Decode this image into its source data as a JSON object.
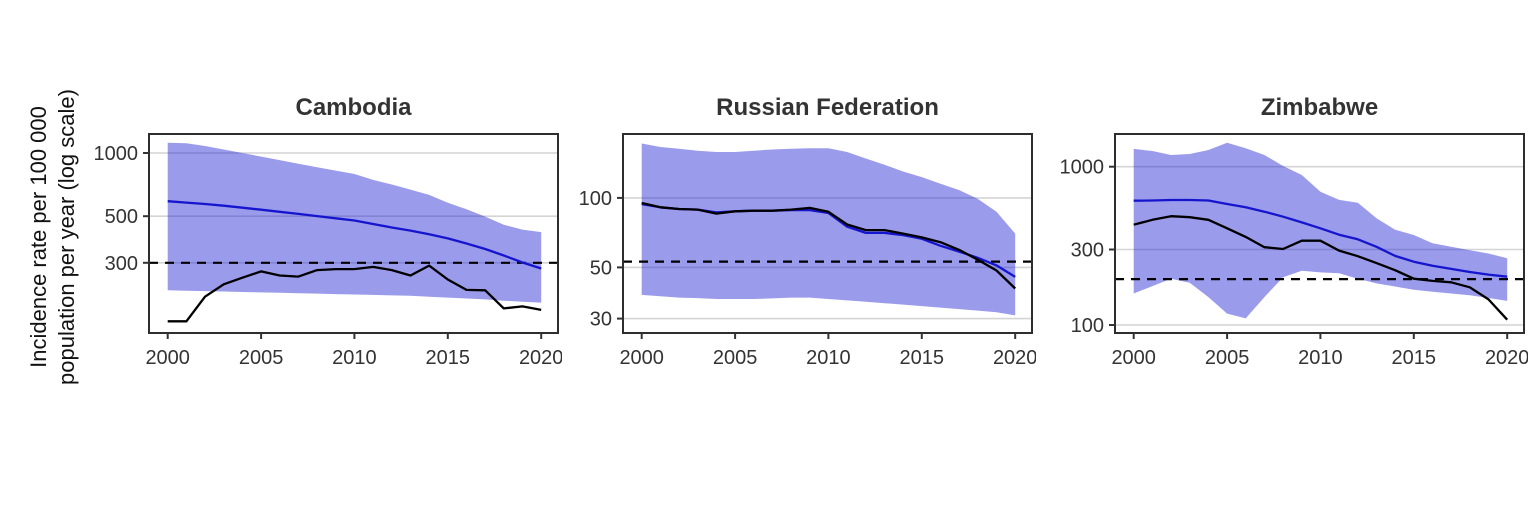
{
  "figure": {
    "ylabel_line1": "Incidence rate per 100 000",
    "ylabel_line2": "population per year (log scale)"
  },
  "colors": {
    "band_fill": "#2222D2",
    "band_opacity": 0.45,
    "estimate_line": "#1515CE",
    "notified_line": "#000000",
    "target_line": "#000000",
    "gridline": "#d4d4d4",
    "panel_border": "#2e2e2e",
    "tick_mark": "#333333",
    "tick_text": "#333333"
  },
  "chart_data": [
    {
      "type": "line",
      "title": "Cambodia",
      "xlabel": "",
      "ylabel": "Incidence rate per 100 000 population per year (log scale)",
      "x": [
        2000,
        2001,
        2002,
        2003,
        2004,
        2005,
        2006,
        2007,
        2008,
        2009,
        2010,
        2011,
        2012,
        2013,
        2014,
        2015,
        2016,
        2017,
        2018,
        2019,
        2020
      ],
      "series": [
        {
          "name": "estimated-incidence-blue",
          "values": [
            590,
            581,
            572,
            561,
            549,
            537,
            525,
            513,
            501,
            489,
            477,
            459,
            442,
            427,
            410,
            392,
            371,
            349,
            325,
            301,
            282
          ]
        },
        {
          "name": "notifications-black",
          "values": [
            158,
            158,
            207,
            237,
            255,
            273,
            261,
            258,
            277,
            280,
            280,
            287,
            277,
            261,
            291,
            250,
            223,
            222,
            182,
            186,
            179
          ]
        }
      ],
      "band": {
        "name": "uncertainty-interval",
        "hi": [
          1120,
          1112,
          1080,
          1040,
          1000,
          962,
          925,
          890,
          855,
          825,
          795,
          745,
          708,
          670,
          632,
          580,
          540,
          498,
          455,
          432,
          420
        ],
        "lo": [
          222,
          221,
          220,
          219,
          218,
          217,
          216,
          215,
          214,
          213,
          212,
          211,
          210,
          209,
          207,
          205,
          203,
          201,
          198,
          196,
          194
        ]
      },
      "target_dashed_y": 300,
      "ylim": [
        139,
        1232
      ],
      "yticks": [
        {
          "v": 1000,
          "label": "1000"
        },
        {
          "v": 500,
          "label": "500"
        },
        {
          "v": 300,
          "label": "300"
        }
      ],
      "xlim": [
        1999,
        2020.9
      ],
      "xticks": [
        {
          "v": 2000,
          "label": "2000"
        },
        {
          "v": 2005,
          "label": "2005"
        },
        {
          "v": 2010,
          "label": "2010"
        },
        {
          "v": 2015,
          "label": "2015"
        },
        {
          "v": 2020,
          "label": "2020"
        }
      ],
      "grid": true,
      "legend": "none",
      "scale": "log10"
    },
    {
      "type": "line",
      "title": "Russian Federation",
      "xlabel": "",
      "ylabel": "Incidence rate per 100 000 population per year (log scale)",
      "x": [
        2000,
        2001,
        2002,
        2003,
        2004,
        2005,
        2006,
        2007,
        2008,
        2009,
        2010,
        2011,
        2012,
        2013,
        2014,
        2015,
        2016,
        2017,
        2018,
        2019,
        2020
      ],
      "series": [
        {
          "name": "estimated-incidence-blue",
          "values": [
            94,
            91,
            89.5,
            89,
            86.5,
            87.5,
            88,
            88,
            88.5,
            88.5,
            86,
            75,
            70.5,
            70.5,
            69,
            66.5,
            62,
            58.5,
            55,
            51,
            45.5
          ]
        },
        {
          "name": "notifications-black",
          "values": [
            95,
            91,
            89.5,
            89,
            85.5,
            87.5,
            88,
            88,
            89,
            90.5,
            87,
            76.7,
            72.5,
            72.5,
            70,
            67.4,
            64.3,
            59.5,
            54,
            48.5,
            40.5
          ]
        }
      ],
      "band": {
        "name": "uncertainty-interval",
        "hi": [
          172,
          166,
          163,
          160,
          158,
          158,
          160,
          162,
          163,
          164,
          164,
          158,
          148,
          139,
          130,
          123,
          115,
          108,
          99,
          87,
          70
        ],
        "lo": [
          38,
          37.5,
          37,
          36.8,
          36.5,
          36.5,
          36.5,
          36.7,
          37,
          37,
          36.5,
          36,
          35.5,
          35,
          34.5,
          34,
          33.5,
          33,
          32.5,
          32,
          31
        ]
      },
      "target_dashed_y": 53,
      "ylim": [
        26,
        189
      ],
      "yticks": [
        {
          "v": 100,
          "label": "100"
        },
        {
          "v": 50,
          "label": "50"
        },
        {
          "v": 30,
          "label": "30"
        }
      ],
      "xlim": [
        1999,
        2020.9
      ],
      "xticks": [
        {
          "v": 2000,
          "label": "2000"
        },
        {
          "v": 2005,
          "label": "2005"
        },
        {
          "v": 2010,
          "label": "2010"
        },
        {
          "v": 2015,
          "label": "2015"
        },
        {
          "v": 2020,
          "label": "2020"
        }
      ],
      "grid": true,
      "legend": "none",
      "scale": "log10"
    },
    {
      "type": "line",
      "title": "Zimbabwe",
      "xlabel": "",
      "ylabel": "Incidence rate per 100 000 population per year (log scale)",
      "x": [
        2000,
        2001,
        2002,
        2003,
        2004,
        2005,
        2006,
        2007,
        2008,
        2009,
        2010,
        2011,
        2012,
        2013,
        2014,
        2015,
        2016,
        2017,
        2018,
        2019,
        2020
      ],
      "series": [
        {
          "name": "estimated-incidence-blue",
          "values": [
            610,
            612,
            616,
            616,
            612,
            581,
            554,
            520,
            483,
            445,
            408,
            372,
            348,
            312,
            273,
            251,
            237,
            226,
            216,
            208,
            202
          ]
        },
        {
          "name": "notifications-black",
          "values": [
            430,
            462,
            487,
            480,
            462,
            408,
            360,
            310,
            302,
            341,
            341,
            295,
            272,
            246,
            222,
            196,
            190,
            186,
            173,
            145,
            108
          ]
        }
      ],
      "band": {
        "name": "uncertainty-interval",
        "hi": [
          1295,
          1257,
          1186,
          1203,
          1275,
          1418,
          1306,
          1186,
          1010,
          886,
          695,
          617,
          592,
          472,
          400,
          370,
          328,
          312,
          297,
          283,
          264
        ],
        "lo": [
          158,
          176,
          196,
          185,
          150,
          118,
          110,
          150,
          200,
          220,
          215,
          212,
          196,
          183,
          175,
          167,
          162,
          158,
          154,
          148,
          142
        ]
      },
      "target_dashed_y": 195,
      "ylim": [
        89,
        1609
      ],
      "yticks": [
        {
          "v": 1000,
          "label": "1000"
        },
        {
          "v": 300,
          "label": "300"
        },
        {
          "v": 100,
          "label": "100"
        }
      ],
      "xlim": [
        1999,
        2020.9
      ],
      "xticks": [
        {
          "v": 2000,
          "label": "2000"
        },
        {
          "v": 2005,
          "label": "2005"
        },
        {
          "v": 2010,
          "label": "2010"
        },
        {
          "v": 2015,
          "label": "2015"
        },
        {
          "v": 2020,
          "label": "2020"
        }
      ],
      "grid": true,
      "legend": "none",
      "scale": "log10"
    }
  ]
}
